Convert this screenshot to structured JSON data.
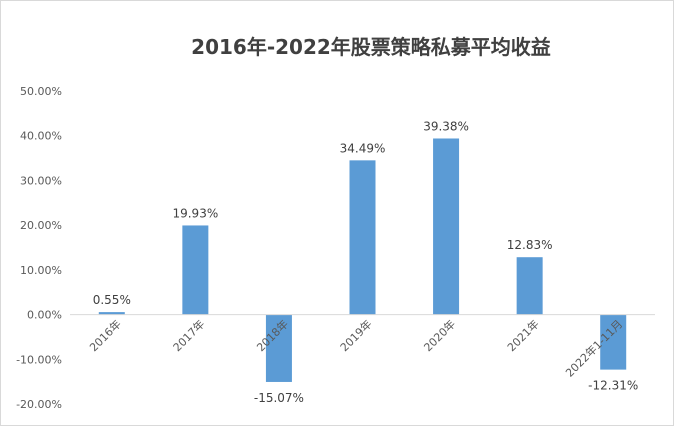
{
  "chart_data": {
    "type": "bar",
    "title": "2016年-2022年股票策略私募平均收益",
    "categories": [
      "2016年",
      "2017年",
      "2018年",
      "2019年",
      "2020年",
      "2021年",
      "2022年1-11月"
    ],
    "values": [
      0.55,
      19.93,
      -15.07,
      34.49,
      39.38,
      12.83,
      -12.31
    ],
    "data_labels": [
      "0.55%",
      "19.93%",
      "-15.07%",
      "34.49%",
      "39.38%",
      "12.83%",
      "-12.31%"
    ],
    "y_ticks": [
      50,
      40,
      30,
      20,
      10,
      0,
      -10,
      -20
    ],
    "y_tick_labels": [
      "50.00%",
      "40.00%",
      "30.00%",
      "20.00%",
      "10.00%",
      "0.00%",
      "-10.00%",
      "-20.00%"
    ],
    "ylim": [
      -20,
      50
    ],
    "bar_color": "#5b9bd5",
    "grid": false
  }
}
